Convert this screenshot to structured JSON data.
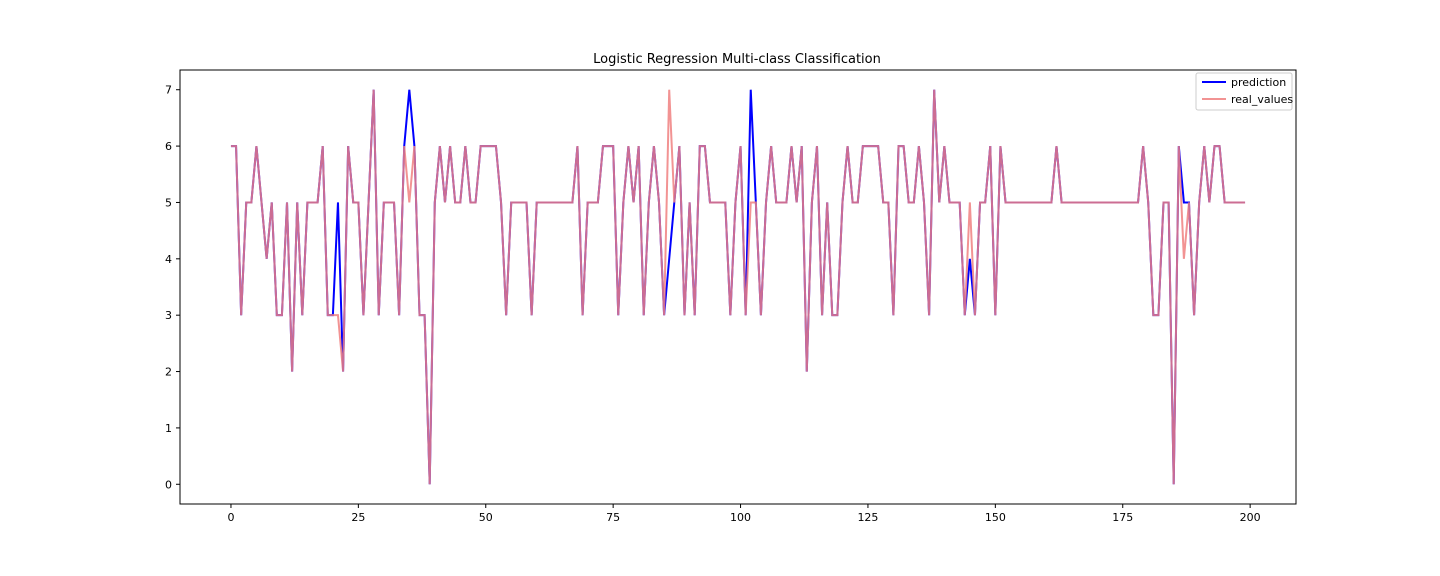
{
  "chart_data": {
    "type": "line",
    "title": "Logistic Regression Multi-class Classification",
    "xlabel": "",
    "ylabel": "",
    "xlim": [
      -10,
      209
    ],
    "ylim": [
      -0.35,
      7.35
    ],
    "xticks": [
      0,
      25,
      50,
      75,
      100,
      125,
      150,
      175,
      200
    ],
    "yticks": [
      0,
      1,
      2,
      3,
      4,
      5,
      6,
      7
    ],
    "grid": false,
    "legend_position": "top-right",
    "series": [
      {
        "name": "prediction",
        "color": "#0000ff",
        "values": [
          6,
          6,
          3,
          5,
          5,
          6,
          5,
          4,
          5,
          3,
          3,
          5,
          2,
          5,
          3,
          5,
          5,
          5,
          6,
          3,
          3,
          5,
          2,
          6,
          5,
          5,
          3,
          5,
          7,
          3,
          5,
          5,
          5,
          3,
          6,
          7,
          6,
          3,
          3,
          0,
          5,
          6,
          5,
          6,
          5,
          5,
          6,
          5,
          5,
          6,
          6,
          6,
          6,
          5,
          3,
          5,
          5,
          5,
          5,
          3,
          5,
          5,
          5,
          5,
          5,
          5,
          5,
          5,
          6,
          3,
          5,
          5,
          5,
          6,
          6,
          6,
          3,
          5,
          6,
          5,
          6,
          3,
          5,
          6,
          5,
          3,
          4,
          5,
          6,
          3,
          5,
          3,
          6,
          6,
          5,
          5,
          5,
          5,
          3,
          5,
          6,
          3,
          7,
          5,
          3,
          5,
          6,
          5,
          5,
          5,
          6,
          5,
          6,
          2,
          5,
          6,
          3,
          5,
          3,
          3,
          5,
          6,
          5,
          5,
          6,
          6,
          6,
          6,
          5,
          5,
          3,
          6,
          6,
          5,
          5,
          6,
          5,
          3,
          7,
          5,
          6,
          5,
          5,
          5,
          3,
          4,
          3,
          5,
          5,
          6,
          3,
          6,
          5,
          5,
          5,
          5,
          5,
          5,
          5,
          5,
          5,
          5,
          6,
          5,
          5,
          5,
          5,
          5,
          5,
          5,
          5,
          5,
          5,
          5,
          5,
          5,
          5,
          5,
          5,
          6,
          5,
          3,
          3,
          5,
          5,
          0,
          6,
          5,
          5,
          3,
          5,
          6,
          5,
          6,
          6,
          5,
          5,
          5,
          5,
          5
        ],
        "opacity": 1
      },
      {
        "name": "real_values",
        "color": "#f08080",
        "values": [
          6,
          6,
          3,
          5,
          5,
          6,
          5,
          4,
          5,
          3,
          3,
          5,
          2,
          5,
          3,
          5,
          5,
          5,
          6,
          3,
          3,
          3,
          2,
          6,
          5,
          5,
          3,
          5,
          7,
          3,
          5,
          5,
          5,
          3,
          6,
          5,
          6,
          3,
          3,
          0,
          5,
          6,
          5,
          6,
          5,
          5,
          6,
          5,
          5,
          6,
          6,
          6,
          6,
          5,
          3,
          5,
          5,
          5,
          5,
          3,
          5,
          5,
          5,
          5,
          5,
          5,
          5,
          5,
          6,
          3,
          5,
          5,
          5,
          6,
          6,
          6,
          3,
          5,
          6,
          5,
          6,
          3,
          5,
          6,
          5,
          3,
          7,
          5,
          6,
          3,
          5,
          3,
          6,
          6,
          5,
          5,
          5,
          5,
          3,
          5,
          6,
          3,
          5,
          5,
          3,
          5,
          6,
          5,
          5,
          5,
          6,
          5,
          6,
          2,
          5,
          6,
          3,
          5,
          3,
          3,
          5,
          6,
          5,
          5,
          6,
          6,
          6,
          6,
          5,
          5,
          3,
          6,
          6,
          5,
          5,
          6,
          5,
          3,
          7,
          5,
          6,
          5,
          5,
          5,
          3,
          5,
          3,
          5,
          5,
          6,
          3,
          6,
          5,
          5,
          5,
          5,
          5,
          5,
          5,
          5,
          5,
          5,
          6,
          5,
          5,
          5,
          5,
          5,
          5,
          5,
          5,
          5,
          5,
          5,
          5,
          5,
          5,
          5,
          5,
          6,
          5,
          3,
          3,
          5,
          5,
          0,
          6,
          4,
          5,
          3,
          5,
          6,
          5,
          6,
          6,
          5,
          5,
          5,
          5,
          5
        ],
        "opacity": 0.85
      }
    ]
  }
}
